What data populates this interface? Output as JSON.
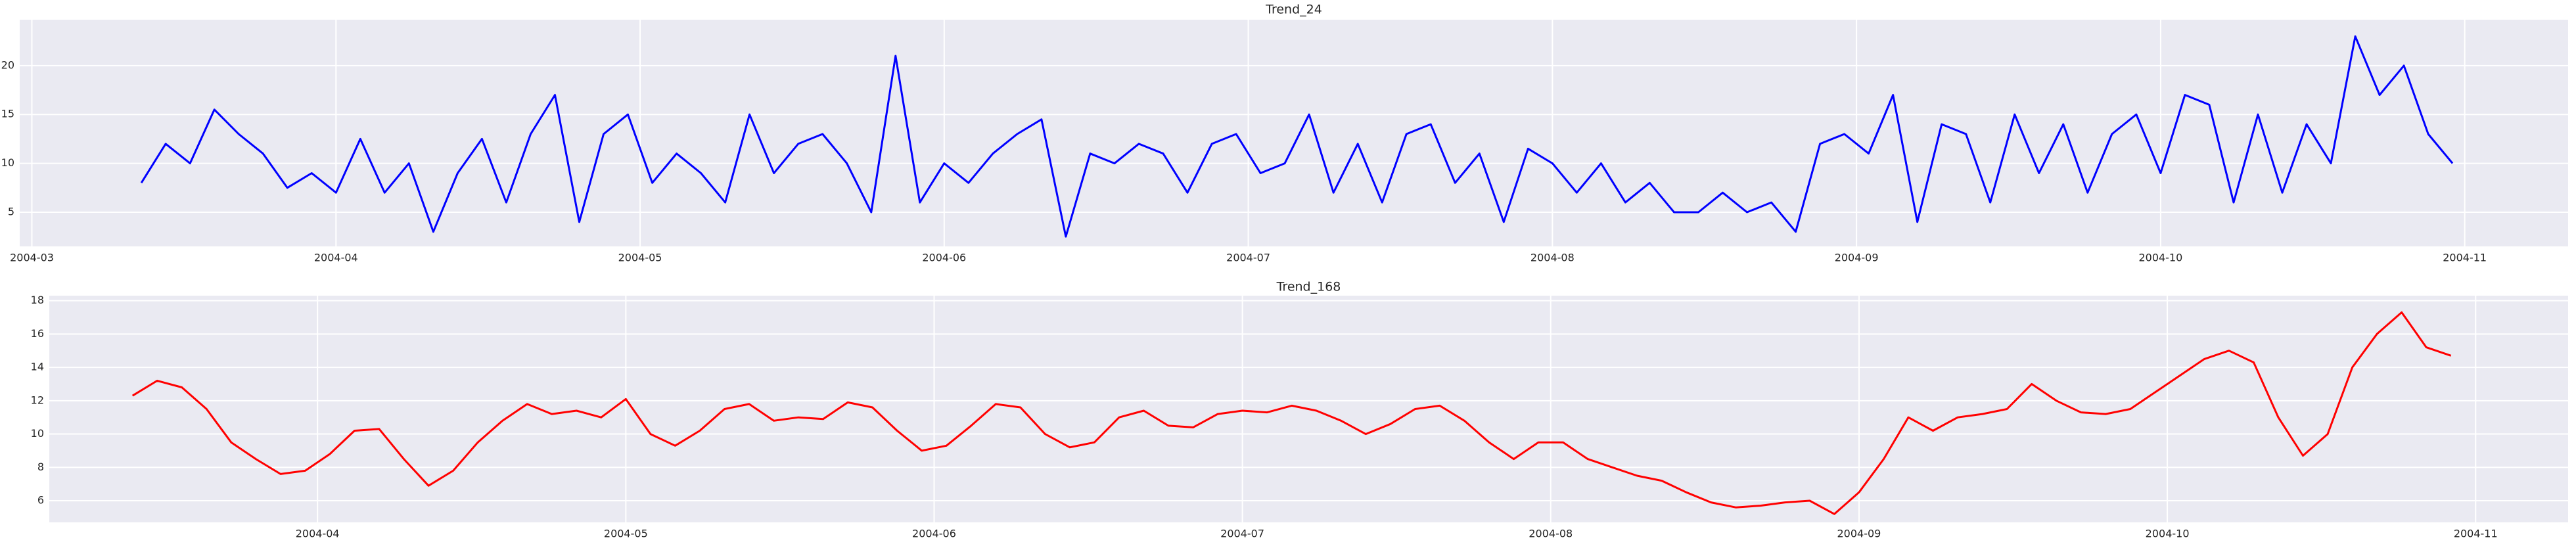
{
  "chart_data": [
    {
      "type": "line",
      "title": "Trend_24",
      "x": [
        3.36,
        3.44,
        3.52,
        3.6,
        3.68,
        3.76,
        3.84,
        3.92,
        4.0,
        4.08,
        4.16,
        4.24,
        4.32,
        4.4,
        4.48,
        4.56,
        4.64,
        4.72,
        4.8,
        4.88,
        4.96,
        5.04,
        5.12,
        5.2,
        5.28,
        5.36,
        5.44,
        5.52,
        5.6,
        5.68,
        5.76,
        5.84,
        5.92,
        6.0,
        6.08,
        6.16,
        6.24,
        6.32,
        6.4,
        6.48,
        6.56,
        6.64,
        6.72,
        6.8,
        6.88,
        6.96,
        7.04,
        7.12,
        7.2,
        7.28,
        7.36,
        7.44,
        7.52,
        7.6,
        7.68,
        7.76,
        7.84,
        7.92,
        8.0,
        8.08,
        8.16,
        8.24,
        8.32,
        8.4,
        8.48,
        8.56,
        8.64,
        8.72,
        8.8,
        8.88,
        8.96,
        9.04,
        9.12,
        9.2,
        9.28,
        9.36,
        9.44,
        9.52,
        9.6,
        9.68,
        9.76,
        9.84,
        9.92,
        10.0,
        10.08,
        10.16,
        10.24,
        10.32,
        10.4,
        10.48,
        10.56,
        10.64,
        10.72,
        10.8,
        10.88,
        10.96
      ],
      "series": [
        {
          "color": "#0000ff",
          "values": [
            8,
            12,
            10,
            15.5,
            13,
            11,
            7.5,
            9,
            7,
            12.5,
            7,
            10,
            3,
            9,
            12.5,
            6,
            13,
            17,
            4,
            13,
            15,
            8,
            11,
            9,
            6,
            15,
            9,
            12,
            13,
            10,
            5,
            21,
            6,
            10,
            8,
            11,
            13,
            14.5,
            2.5,
            11,
            10,
            12,
            11,
            7,
            12,
            13,
            9,
            10,
            15,
            7,
            12,
            6,
            13,
            14,
            8,
            11,
            4,
            11.5,
            10,
            7,
            10,
            6,
            8,
            5,
            5,
            7,
            5,
            6,
            3,
            12,
            13,
            11,
            17,
            4,
            14,
            13,
            6,
            15,
            9,
            14,
            7,
            13,
            15,
            9,
            17,
            16,
            6,
            15,
            7,
            14,
            10,
            23,
            17,
            20,
            13,
            10
          ]
        }
      ],
      "xlim": [
        2.96,
        11.34
      ],
      "ylim": [
        1.5,
        24.7
      ],
      "xticks": [
        {
          "value": 3,
          "label": "2004-03"
        },
        {
          "value": 4,
          "label": "2004-04"
        },
        {
          "value": 5,
          "label": "2004-05"
        },
        {
          "value": 6,
          "label": "2004-06"
        },
        {
          "value": 7,
          "label": "2004-07"
        },
        {
          "value": 8,
          "label": "2004-08"
        },
        {
          "value": 9,
          "label": "2004-09"
        },
        {
          "value": 10,
          "label": "2004-10"
        },
        {
          "value": 11,
          "label": "2004-11"
        }
      ],
      "yticks": [
        5,
        10,
        15,
        20
      ],
      "grid": true
    },
    {
      "type": "line",
      "title": "Trend_168",
      "x": [
        3.4,
        3.48,
        3.56,
        3.64,
        3.72,
        3.8,
        3.88,
        3.96,
        4.04,
        4.12,
        4.2,
        4.28,
        4.36,
        4.44,
        4.52,
        4.6,
        4.68,
        4.76,
        4.84,
        4.92,
        5.0,
        5.08,
        5.16,
        5.24,
        5.32,
        5.4,
        5.48,
        5.56,
        5.64,
        5.72,
        5.8,
        5.88,
        5.96,
        6.04,
        6.12,
        6.2,
        6.28,
        6.36,
        6.44,
        6.52,
        6.6,
        6.68,
        6.76,
        6.84,
        6.92,
        7.0,
        7.08,
        7.16,
        7.24,
        7.32,
        7.4,
        7.48,
        7.56,
        7.64,
        7.72,
        7.8,
        7.88,
        7.96,
        8.04,
        8.12,
        8.2,
        8.28,
        8.36,
        8.44,
        8.52,
        8.6,
        8.68,
        8.76,
        8.84,
        8.92,
        9.0,
        9.08,
        9.16,
        9.24,
        9.32,
        9.4,
        9.48,
        9.56,
        9.64,
        9.72,
        9.8,
        9.88,
        9.96,
        10.04,
        10.12,
        10.2,
        10.28,
        10.36,
        10.44,
        10.52,
        10.6,
        10.68,
        10.76,
        10.84,
        10.92
      ],
      "series": [
        {
          "color": "#ff0000",
          "values": [
            12.3,
            13.2,
            12.8,
            11.5,
            9.5,
            8.5,
            7.6,
            7.8,
            8.8,
            10.2,
            10.3,
            8.5,
            6.9,
            7.8,
            9.5,
            10.8,
            11.8,
            11.2,
            11.4,
            11.0,
            12.1,
            10,
            9.3,
            10.2,
            11.5,
            11.8,
            10.8,
            11.0,
            10.9,
            11.9,
            11.6,
            10.2,
            9.0,
            9.3,
            10.5,
            11.8,
            11.6,
            10,
            9.2,
            9.5,
            11.0,
            11.4,
            10.5,
            10.4,
            11.2,
            11.4,
            11.3,
            11.7,
            11.4,
            10.8,
            10.0,
            10.6,
            11.5,
            11.7,
            10.8,
            9.5,
            8.5,
            9.5,
            9.5,
            8.5,
            8.0,
            7.5,
            7.2,
            6.5,
            5.9,
            5.6,
            5.7,
            5.9,
            6.0,
            5.2,
            6.5,
            8.5,
            11.0,
            10.2,
            11.0,
            11.2,
            11.5,
            13.0,
            12.0,
            11.3,
            11.2,
            11.5,
            12.5,
            13.5,
            14.5,
            15.0,
            14.3,
            11.0,
            8.7,
            10.0,
            14.0,
            16.0,
            17.3,
            15.2,
            14.7
          ]
        }
      ],
      "xlim": [
        3.13,
        11.3
      ],
      "ylim": [
        4.7,
        18.3
      ],
      "xticks": [
        {
          "value": 4,
          "label": "2004-04"
        },
        {
          "value": 5,
          "label": "2004-05"
        },
        {
          "value": 6,
          "label": "2004-06"
        },
        {
          "value": 7,
          "label": "2004-07"
        },
        {
          "value": 8,
          "label": "2004-08"
        },
        {
          "value": 9,
          "label": "2004-09"
        },
        {
          "value": 10,
          "label": "2004-10"
        },
        {
          "value": 11,
          "label": "2004-11"
        }
      ],
      "yticks": [
        6,
        8,
        10,
        12,
        14,
        16,
        18
      ],
      "grid": true
    }
  ]
}
